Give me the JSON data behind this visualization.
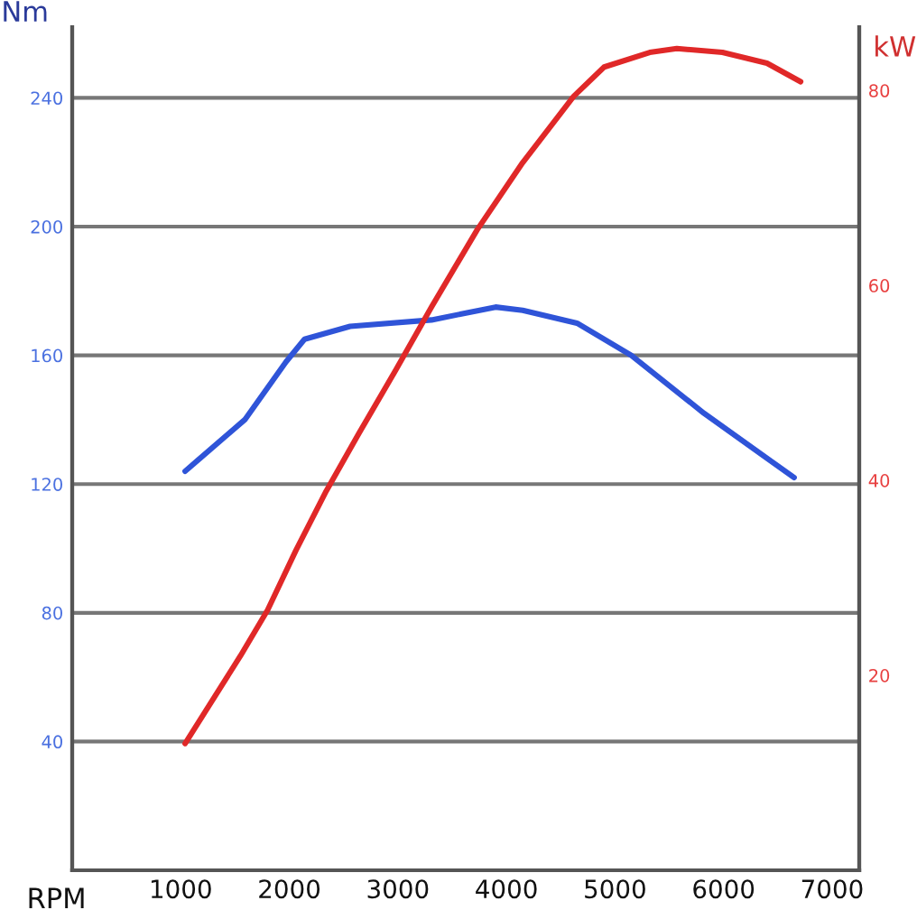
{
  "chart_data": {
    "type": "line",
    "xlabel": "RPM",
    "ylabel": "Nm",
    "y2label": "kW",
    "xlim": [
      0,
      7250
    ],
    "xticks": [
      1000,
      2000,
      3000,
      4000,
      5000,
      6000,
      7000
    ],
    "ylim": [
      0,
      262
    ],
    "yticks": [
      40,
      80,
      120,
      160,
      200,
      240
    ],
    "y2lim": [
      0,
      86.5
    ],
    "y2ticks": [
      20,
      40,
      60,
      80
    ],
    "grid": "y",
    "legend": false,
    "marker": "none",
    "line_style": "solid",
    "series": [
      {
        "color": "#2f54d8",
        "x": [
          1040,
          1590,
          1970,
          2140,
          2560,
          3310,
          3900,
          4150,
          4650,
          5150,
          5820,
          6650
        ],
        "values": [
          124,
          140,
          158,
          165,
          169,
          171,
          175,
          174,
          170,
          160,
          142,
          122
        ]
      },
      {
        "color": "#e02828",
        "axis": "y2",
        "x": [
          1040,
          1550,
          1800,
          2060,
          2340,
          2640,
          2980,
          3310,
          3730,
          4150,
          4620,
          4900,
          5320,
          5570,
          5990,
          6400,
          6710
        ],
        "values": [
          13,
          22,
          26.7,
          32.8,
          38.9,
          44.8,
          51.3,
          57.8,
          65.7,
          72.6,
          79.4,
          82.4,
          83.9,
          84.3,
          83.9,
          82.8,
          80.9
        ]
      }
    ]
  }
}
